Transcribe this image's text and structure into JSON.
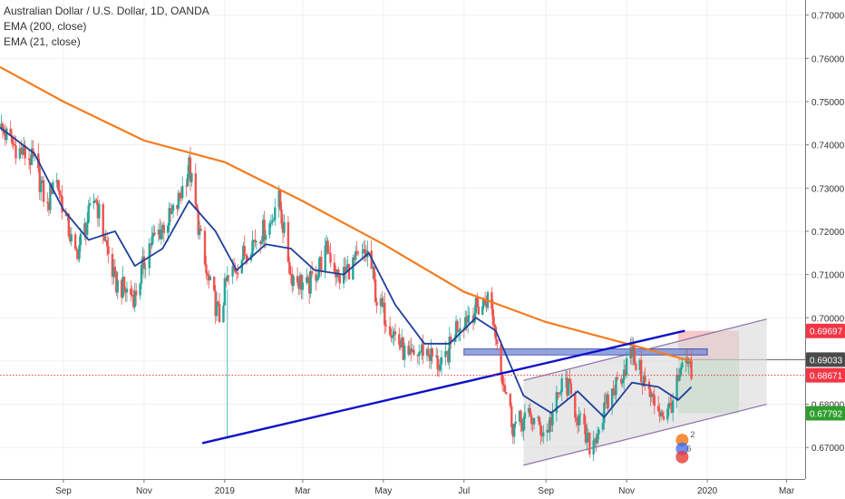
{
  "legend": {
    "title": "Australian Dollar / U.S. Dollar, 1D, OANDA",
    "ema200": "EMA (200, close)",
    "ema21": "EMA (21, close)"
  },
  "colors": {
    "up": "#26a69a",
    "down": "#ef5350",
    "ema200": "#f57c20",
    "ema21": "#1f3f9a",
    "trendline": "#1010c8",
    "channel": "#8e6fa8",
    "stop_zone": "#f4b6b6",
    "target_zone": "#b9e0bb",
    "resistance_zone": "#7a8fd6",
    "red_badge": "#f23645",
    "green_badge": "#2e9e2e",
    "dark_badge": "#4a4a4a",
    "price_line": "#e53935"
  },
  "chart_data": {
    "type": "candlestick",
    "title": "Australian Dollar / U.S. Dollar, 1D, OANDA",
    "ylim": [
      0.6627,
      0.7735
    ],
    "y_ticks": [
      "0.77000",
      "0.76000",
      "0.75000",
      "0.74000",
      "0.73000",
      "0.72000",
      "0.71000",
      "0.70000",
      "0.69000",
      "0.68000",
      "0.67000"
    ],
    "y_tick_values": [
      0.77,
      0.76,
      0.75,
      0.74,
      0.73,
      0.72,
      0.71,
      0.7,
      0.69,
      0.68,
      0.67
    ],
    "x_range": [
      "2018-07-15",
      "2020-03-15"
    ],
    "x_ticks": [
      {
        "label": "Sep",
        "date": "2018-09-01"
      },
      {
        "label": "Nov",
        "date": "2018-11-01"
      },
      {
        "label": "2019",
        "date": "2019-01-01"
      },
      {
        "label": "Mar",
        "date": "2019-03-01"
      },
      {
        "label": "May",
        "date": "2019-05-01"
      },
      {
        "label": "Jul",
        "date": "2019-07-01"
      },
      {
        "label": "Sep",
        "date": "2019-09-01"
      },
      {
        "label": "Nov",
        "date": "2019-11-01"
      },
      {
        "label": "2020",
        "date": "2020-01-01"
      },
      {
        "label": "Mar",
        "date": "2020-03-01"
      }
    ],
    "price_path": [
      [
        "2018-07-15",
        0.744
      ],
      [
        "2018-07-25",
        0.74
      ],
      [
        "2018-08-10",
        0.736
      ],
      [
        "2018-08-20",
        0.725
      ],
      [
        "2018-08-25",
        0.734
      ],
      [
        "2018-09-10",
        0.714
      ],
      [
        "2018-09-25",
        0.728
      ],
      [
        "2018-10-10",
        0.708
      ],
      [
        "2018-10-25",
        0.705
      ],
      [
        "2018-11-05",
        0.717
      ],
      [
        "2018-11-25",
        0.725
      ],
      [
        "2018-12-05",
        0.735
      ],
      [
        "2018-12-18",
        0.71
      ],
      [
        "2018-12-28",
        0.7
      ],
      [
        "2019-01-02",
        0.708
      ],
      [
        "2019-01-20",
        0.717
      ],
      [
        "2019-02-05",
        0.722
      ],
      [
        "2019-02-10",
        0.729
      ],
      [
        "2019-02-20",
        0.71
      ],
      [
        "2019-03-05",
        0.707
      ],
      [
        "2019-03-20",
        0.716
      ],
      [
        "2019-03-28",
        0.709
      ],
      [
        "2019-04-10",
        0.713
      ],
      [
        "2019-04-20",
        0.715
      ],
      [
        "2019-04-26",
        0.704
      ],
      [
        "2019-05-05",
        0.699
      ],
      [
        "2019-05-20",
        0.69
      ],
      [
        "2019-06-01",
        0.693
      ],
      [
        "2019-06-15",
        0.688
      ],
      [
        "2019-06-25",
        0.698
      ],
      [
        "2019-07-05",
        0.701
      ],
      [
        "2019-07-15",
        0.703
      ],
      [
        "2019-07-20",
        0.705
      ],
      [
        "2019-07-30",
        0.687
      ],
      [
        "2019-08-07",
        0.675
      ],
      [
        "2019-08-20",
        0.677
      ],
      [
        "2019-09-01",
        0.673
      ],
      [
        "2019-09-15",
        0.686
      ],
      [
        "2019-10-01",
        0.672
      ],
      [
        "2019-10-05",
        0.67
      ],
      [
        "2019-10-20",
        0.682
      ],
      [
        "2019-11-05",
        0.692
      ],
      [
        "2019-11-20",
        0.681
      ],
      [
        "2019-12-01",
        0.677
      ],
      [
        "2019-12-10",
        0.685
      ],
      [
        "2019-12-16",
        0.69
      ],
      [
        "2019-12-20",
        0.6867
      ]
    ],
    "ema200": [
      [
        "2018-07-15",
        0.758
      ],
      [
        "2018-09-01",
        0.75
      ],
      [
        "2018-11-01",
        0.741
      ],
      [
        "2019-01-01",
        0.736
      ],
      [
        "2019-03-01",
        0.727
      ],
      [
        "2019-05-01",
        0.717
      ],
      [
        "2019-07-01",
        0.706
      ],
      [
        "2019-09-01",
        0.699
      ],
      [
        "2019-11-01",
        0.694
      ],
      [
        "2019-12-20",
        0.69
      ]
    ],
    "ema21": [
      [
        "2018-07-15",
        0.744
      ],
      [
        "2018-08-10",
        0.738
      ],
      [
        "2018-09-01",
        0.725
      ],
      [
        "2018-09-20",
        0.718
      ],
      [
        "2018-10-10",
        0.72
      ],
      [
        "2018-10-25",
        0.712
      ],
      [
        "2018-11-15",
        0.716
      ],
      [
        "2018-12-05",
        0.727
      ],
      [
        "2018-12-25",
        0.72
      ],
      [
        "2019-01-10",
        0.711
      ],
      [
        "2019-02-01",
        0.717
      ],
      [
        "2019-02-20",
        0.716
      ],
      [
        "2019-03-10",
        0.711
      ],
      [
        "2019-04-01",
        0.71
      ],
      [
        "2019-04-20",
        0.715
      ],
      [
        "2019-05-10",
        0.703
      ],
      [
        "2019-06-01",
        0.694
      ],
      [
        "2019-06-20",
        0.694
      ],
      [
        "2019-07-10",
        0.7
      ],
      [
        "2019-07-25",
        0.697
      ],
      [
        "2019-08-15",
        0.682
      ],
      [
        "2019-09-05",
        0.678
      ],
      [
        "2019-09-25",
        0.683
      ],
      [
        "2019-10-15",
        0.677
      ],
      [
        "2019-11-05",
        0.685
      ],
      [
        "2019-11-25",
        0.684
      ],
      [
        "2019-12-10",
        0.681
      ],
      [
        "2019-12-20",
        0.684
      ]
    ],
    "trendline": {
      "from": [
        "2018-12-15",
        0.671
      ],
      "to": [
        "2019-12-15",
        0.697
      ]
    },
    "channel": {
      "upper": {
        "from": [
          "2019-08-15",
          0.6855
        ],
        "to": [
          "2020-02-15",
          0.6997
        ]
      },
      "lower": {
        "from": [
          "2019-08-15",
          0.6659
        ],
        "to": [
          "2020-02-15",
          0.68
        ]
      }
    },
    "resistance_zone": {
      "x": [
        "2019-07-01",
        "2020-01-01"
      ],
      "y": [
        0.6914,
        0.6928
      ]
    },
    "position": {
      "x": [
        "2019-12-10",
        "2020-01-25"
      ],
      "entry": 0.69033,
      "stop": 0.69697,
      "target": 0.67792
    },
    "price_labels": [
      {
        "value": "0.69697",
        "level": 0.69697,
        "kind": "red"
      },
      {
        "value": "0.69033",
        "level": 0.69033,
        "kind": "dark"
      },
      {
        "value": "0.68671",
        "level": 0.68671,
        "kind": "red"
      },
      {
        "value": "0.67792",
        "level": 0.67792,
        "kind": "green"
      }
    ],
    "last_price": 0.68671,
    "event_badges": [
      "2",
      "6"
    ]
  }
}
